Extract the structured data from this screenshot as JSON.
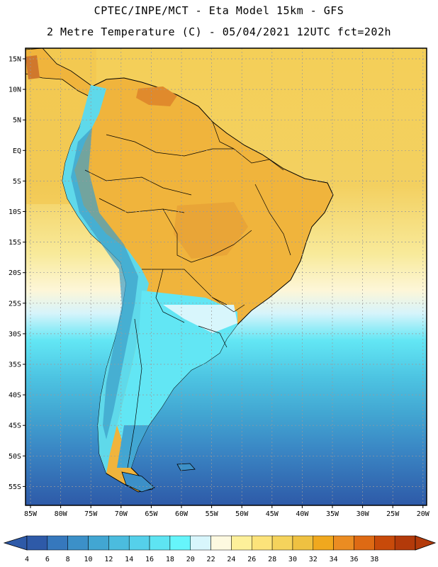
{
  "title": {
    "line1": "CPTEC/INPE/MCT -  Eta Model 15km - GFS",
    "line2": "2 Metre Temperature (C) - 05/04/2021 12UTC fct=202h"
  },
  "map": {
    "lat_labels": [
      "15N",
      "10N",
      "5N",
      "EQ",
      "5S",
      "10S",
      "15S",
      "20S",
      "25S",
      "30S",
      "35S",
      "40S",
      "45S",
      "50S",
      "55S"
    ],
    "lon_labels": [
      "85W",
      "80W",
      "75W",
      "70W",
      "65W",
      "60W",
      "55W",
      "50W",
      "45W",
      "40W",
      "35W",
      "30W",
      "25W",
      "20W"
    ],
    "colors": {
      "ocean_warm": "#f5d35c",
      "land_warm": "#f0b43c",
      "land_hot": "#e08a2c",
      "andes_cool": "#5fd9ea",
      "grid": "#9a9a9a"
    }
  },
  "colorbar": {
    "ticks": [
      "4",
      "6",
      "8",
      "10",
      "12",
      "14",
      "16",
      "18",
      "20",
      "22",
      "24",
      "26",
      "28",
      "30",
      "32",
      "34",
      "36",
      "38"
    ],
    "colors": [
      "#2e5aa8",
      "#3678bd",
      "#3c90c8",
      "#42a6d2",
      "#4bbcde",
      "#55d0ea",
      "#5ee4f2",
      "#66f5fb",
      "#d8f6fc",
      "#fdf9e0",
      "#fdf09a",
      "#fce37a",
      "#f5d35c",
      "#efc141",
      "#f0a81e",
      "#eb8c22",
      "#de6a14",
      "#c84a0a",
      "#b33a0a"
    ]
  }
}
